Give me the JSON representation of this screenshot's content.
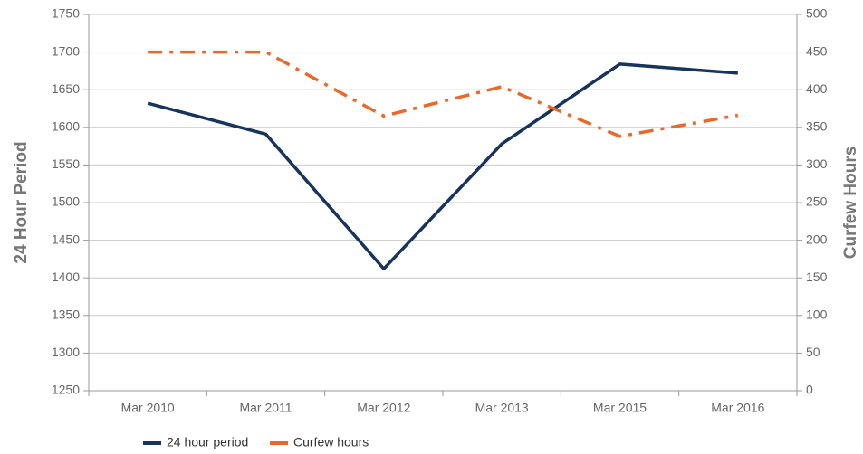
{
  "chart_data": {
    "type": "line",
    "categories": [
      "Mar 2010",
      "Mar 2011",
      "Mar 2012",
      "Mar 2013",
      "Mar 2015",
      "Mar 2016"
    ],
    "series": [
      {
        "name": "24 hour period",
        "color": "#16345c",
        "values": [
          1632,
          1591,
          1412,
          1578,
          1684,
          1672
        ]
      },
      {
        "name": "Curfew hours",
        "color": "#e8692a",
        "axis": "y2",
        "dash": true,
        "values": [
          450,
          450,
          365,
          404,
          338,
          366
        ]
      }
    ],
    "ylabel": "24 Hour Period",
    "y2label": "Curfew Hours",
    "ylim": [
      1250,
      1750
    ],
    "yticks": [
      1250,
      1300,
      1350,
      1400,
      1450,
      1500,
      1550,
      1600,
      1650,
      1700,
      1750
    ],
    "y2lim": [
      0,
      500
    ],
    "y2ticks": [
      0,
      50,
      100,
      150,
      200,
      250,
      300,
      350,
      400,
      450,
      500
    ],
    "grid": true,
    "legend": "bottom"
  }
}
